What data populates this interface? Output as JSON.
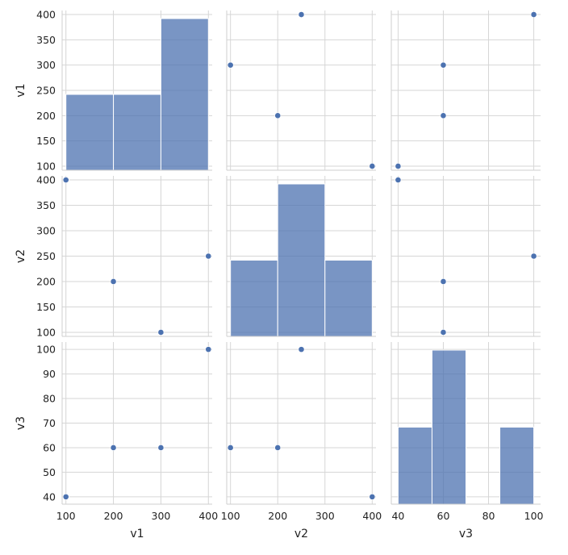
{
  "chart_data": {
    "type": "pairplot",
    "variables": [
      "v1",
      "v2",
      "v3"
    ],
    "rows": [
      {
        "v1": 100,
        "v2": 400,
        "v3": 40
      },
      {
        "v1": 200,
        "v2": 200,
        "v3": 60
      },
      {
        "v1": 300,
        "v2": 100,
        "v3": 60
      },
      {
        "v1": 400,
        "v2": 250,
        "v3": 100
      }
    ],
    "histograms": {
      "v1": {
        "bins": [
          [
            100,
            200
          ],
          [
            200,
            300
          ],
          [
            300,
            400
          ]
        ],
        "counts": [
          1,
          1,
          2
        ]
      },
      "v2": {
        "bins": [
          [
            100,
            200
          ],
          [
            200,
            300
          ],
          [
            300,
            400
          ]
        ],
        "counts": [
          1,
          2,
          1
        ]
      },
      "v3": {
        "bins": [
          [
            40,
            55
          ],
          [
            55,
            70
          ],
          [
            70,
            85
          ],
          [
            85,
            100
          ]
        ],
        "counts": [
          1,
          2,
          0,
          1
        ]
      }
    },
    "axes": {
      "v1": {
        "range": [
          92,
          408
        ],
        "ticks": [
          100,
          150,
          200,
          250,
          300,
          350,
          400
        ],
        "bottom_ticks": [
          100,
          200,
          300,
          400
        ],
        "label": "v1"
      },
      "v2": {
        "range": [
          92,
          408
        ],
        "ticks": [
          100,
          150,
          200,
          250,
          300,
          350,
          400
        ],
        "bottom_ticks": [
          100,
          200,
          300,
          400
        ],
        "label": "v2"
      },
      "v3": {
        "range": [
          37,
          103
        ],
        "ticks": [
          40,
          50,
          60,
          70,
          80,
          90,
          100
        ],
        "bottom_ticks": [
          40,
          60,
          80,
          100
        ],
        "label": "v3"
      }
    },
    "grid": true,
    "legend": "none",
    "colors": {
      "marker": "#4c72b0",
      "bar": "#4c72b0",
      "grid": "#d6d6d6",
      "spine": "#cfcfcf"
    }
  }
}
